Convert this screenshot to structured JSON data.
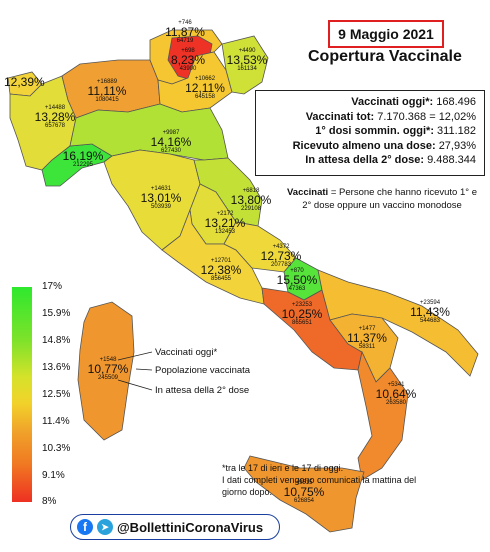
{
  "header": {
    "date": "9 Maggio 2021",
    "title": "Copertura Vaccinale"
  },
  "stats": [
    {
      "label": "Vaccinati oggi*: ",
      "value": "168.496"
    },
    {
      "label": "Vaccinati tot: ",
      "value": "7.170.368 = 12,02%"
    },
    {
      "label": "1° dosi sommin. oggi*: ",
      "value": "311.182"
    },
    {
      "label": "Ricevuto almeno una dose: ",
      "value": "27,93%"
    },
    {
      "label": "In attesa della 2° dose: ",
      "value": "9.488.344"
    }
  ],
  "definition": {
    "term": "Vaccinati",
    "text": " = Persone che hanno ricevuto 1° e 2° dose oppure un vaccino monodose"
  },
  "regions": [
    {
      "key": "aosta",
      "top": "",
      "pct": "12,39%",
      "bot": "",
      "color": "#f2d33a"
    },
    {
      "key": "piemonte",
      "top": "+14488",
      "pct": "13,28%",
      "bot": "657678",
      "color": "#e2dd38"
    },
    {
      "key": "lombardia",
      "top": "+16889",
      "pct": "11,11%",
      "bot": "1080415",
      "color": "#f0a033"
    },
    {
      "key": "trentino",
      "top": "+746",
      "pct": "11,87%",
      "bot": "64719",
      "color": "#f5c532"
    },
    {
      "key": "bolzano",
      "top": "+698",
      "pct": "8,23%",
      "bot": "43900",
      "color": "#ee3326"
    },
    {
      "key": "veneto",
      "top": "+10662",
      "pct": "12,11%",
      "bot": "645158",
      "color": "#f5c832"
    },
    {
      "key": "friuli",
      "top": "+4490",
      "pct": "13,53%",
      "bot": "161134",
      "color": "#cfe037"
    },
    {
      "key": "liguria",
      "top": "",
      "pct": "16,19%",
      "bot": "212295",
      "color": "#3de43a"
    },
    {
      "key": "emilia",
      "top": "+9987",
      "pct": "14,16%",
      "bot": "627430",
      "color": "#b2e136"
    },
    {
      "key": "toscana",
      "top": "+14631",
      "pct": "13,01%",
      "bot": "503939",
      "color": "#e8dc38"
    },
    {
      "key": "marche",
      "top": "+6818",
      "pct": "13,80%",
      "bot": "229108",
      "color": "#c3e037"
    },
    {
      "key": "umbria",
      "top": "+2172",
      "pct": "13,21%",
      "bot": "132453",
      "color": "#e2dd38"
    },
    {
      "key": "lazio",
      "top": "+12701",
      "pct": "12,38%",
      "bot": "856455",
      "color": "#f2d33a"
    },
    {
      "key": "abruzzo",
      "top": "+4372",
      "pct": "12,73%",
      "bot": "207783",
      "color": "#eed83a"
    },
    {
      "key": "molise",
      "top": "+870",
      "pct": "15,50%",
      "bot": "47363",
      "color": "#56e33a"
    },
    {
      "key": "campania",
      "top": "+23253",
      "pct": "10,25%",
      "bot": "865651",
      "color": "#ef6a28"
    },
    {
      "key": "puglia",
      "top": "+23594",
      "pct": "11,43%",
      "bot": "544683",
      "color": "#f5bd32"
    },
    {
      "key": "basilicata",
      "top": "+1477",
      "pct": "11,37%",
      "bot": "58311",
      "color": "#f4b232"
    },
    {
      "key": "calabria",
      "top": "+5341",
      "pct": "10,64%",
      "bot": "263580",
      "color": "#f08a2c"
    },
    {
      "key": "sicilia",
      "top": "+9515",
      "pct": "10,75%",
      "bot": "626854",
      "color": "#f0962e"
    },
    {
      "key": "sardegna",
      "top": "+1548",
      "pct": "10,77%",
      "bot": "245509",
      "color": "#f0962e"
    }
  ],
  "legend": {
    "ticks": [
      "17%",
      "15.9%",
      "14.8%",
      "13.6%",
      "12.5%",
      "11.4%",
      "10.3%",
      "9.1%",
      "8%"
    ],
    "key_labels": [
      "Vaccinati oggi*",
      "Popolazione vaccinata",
      "In attesa della 2° dose"
    ]
  },
  "footnote": {
    "line1": "*tra le 17 di ieri e le 17 di oggi.",
    "line2": "I dati completi vengono comunicati la mattina del giorno dopo."
  },
  "social": {
    "handle": "@BollettiniCoronaVirus",
    "icons": [
      "facebook-icon",
      "telegram-icon"
    ]
  }
}
